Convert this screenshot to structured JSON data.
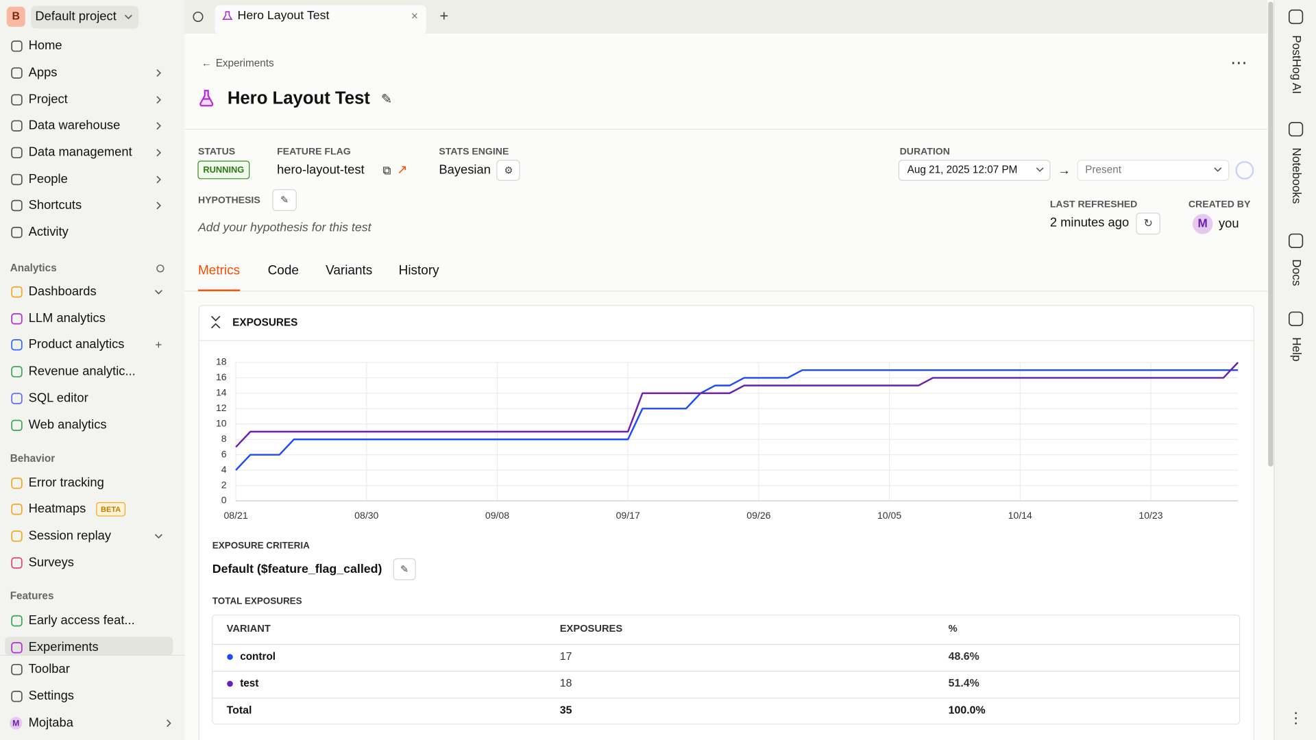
{
  "topbar": {
    "project_initial": "B",
    "project": "Default project",
    "tab": "Hero Layout Test"
  },
  "sidebar": {
    "nav": [
      "Home",
      "Apps",
      "Project",
      "Data warehouse",
      "Data management",
      "People",
      "Shortcuts",
      "Activity"
    ],
    "sections": [
      {
        "title": "Analytics",
        "items": [
          {
            "label": "Dashboards"
          },
          {
            "label": "LLM analytics"
          },
          {
            "label": "Product analytics"
          },
          {
            "label": "Revenue analytic..."
          },
          {
            "label": "SQL editor"
          },
          {
            "label": "Web analytics"
          }
        ]
      },
      {
        "title": "Behavior",
        "items": [
          {
            "label": "Error tracking"
          },
          {
            "label": "Heatmaps",
            "badge": "BETA"
          },
          {
            "label": "Session replay"
          },
          {
            "label": "Surveys"
          }
        ]
      },
      {
        "title": "Features",
        "items": [
          {
            "label": "Early access feat..."
          },
          {
            "label": "Experiments"
          }
        ]
      }
    ],
    "bottom": [
      {
        "label": "Toolbar"
      },
      {
        "label": "Settings"
      },
      {
        "label": "Mojtaba",
        "initial": "M"
      }
    ]
  },
  "right_rail": [
    "PostHog AI",
    "Notebooks",
    "Docs",
    "Help"
  ],
  "experiment": {
    "breadcrumb": "Experiments",
    "title": "Hero Layout Test",
    "status": {
      "label": "STATUS",
      "value": "RUNNING"
    },
    "feature_flag": {
      "label": "FEATURE FLAG",
      "value": "hero-layout-test"
    },
    "stats_engine": {
      "label": "STATS ENGINE",
      "value": "Bayesian"
    },
    "duration": {
      "label": "DURATION",
      "start": "Aug 21, 2025 12:07 PM",
      "end": "Present"
    },
    "hypothesis": {
      "label": "HYPOTHESIS",
      "placeholder": "Add your hypothesis for this test"
    },
    "last_refreshed": {
      "label": "LAST REFRESHED",
      "value": "2 minutes ago"
    },
    "created_by": {
      "label": "CREATED BY",
      "initial": "M",
      "value": "you"
    }
  },
  "tabs": [
    "Metrics",
    "Code",
    "Variants",
    "History"
  ],
  "exposures": {
    "title": "EXPOSURES",
    "criteria_label": "EXPOSURE CRITERIA",
    "criteria": "Default ($feature_flag_called)",
    "total_label": "TOTAL EXPOSURES",
    "table": {
      "header": [
        "VARIANT",
        "EXPOSURES",
        "%"
      ],
      "rows": [
        {
          "exposures": 17,
          "percent": "48.6%"
        },
        {
          "exposures": 18,
          "percent": "51.4%"
        }
      ],
      "total": {
        "label": "Total",
        "exposures": 35,
        "percent": "100.0%"
      }
    }
  },
  "chart_data": {
    "type": "line",
    "categories": [
      "08/21",
      null,
      null,
      null,
      null,
      null,
      null,
      null,
      null,
      "08/30",
      null,
      null,
      null,
      null,
      null,
      null,
      null,
      null,
      "09/08",
      null,
      null,
      null,
      null,
      null,
      null,
      null,
      null,
      "09/17",
      null,
      null,
      null,
      null,
      null,
      null,
      null,
      null,
      "09/26",
      null,
      null,
      null,
      null,
      null,
      null,
      null,
      null,
      "10/05",
      null,
      null,
      null,
      null,
      null,
      null,
      null,
      null,
      "10/14",
      null,
      null,
      null,
      null,
      null,
      null,
      null,
      null,
      "10/23",
      null,
      null,
      null,
      null,
      null,
      null
    ],
    "series": [
      {
        "name": "control",
        "color": "#1d4aff",
        "values": [
          4,
          6,
          6,
          6,
          8,
          8,
          8,
          8,
          8,
          8,
          8,
          8,
          8,
          8,
          8,
          8,
          8,
          8,
          8,
          8,
          8,
          8,
          8,
          8,
          8,
          8,
          8,
          8,
          12,
          12,
          12,
          12,
          14,
          15,
          15,
          16,
          16,
          16,
          16,
          17,
          17,
          17,
          17,
          17,
          17,
          17,
          17,
          17,
          17,
          17,
          17,
          17,
          17,
          17,
          17,
          17,
          17,
          17,
          17,
          17,
          17,
          17,
          17,
          17,
          17,
          17,
          17,
          17,
          17,
          17
        ]
      },
      {
        "name": "test",
        "color": "#6a1eb0",
        "values": [
          7,
          9,
          9,
          9,
          9,
          9,
          9,
          9,
          9,
          9,
          9,
          9,
          9,
          9,
          9,
          9,
          9,
          9,
          9,
          9,
          9,
          9,
          9,
          9,
          9,
          9,
          9,
          9,
          14,
          14,
          14,
          14,
          14,
          14,
          14,
          15,
          15,
          15,
          15,
          15,
          15,
          15,
          15,
          15,
          15,
          15,
          15,
          15,
          16,
          16,
          16,
          16,
          16,
          16,
          16,
          16,
          16,
          16,
          16,
          16,
          16,
          16,
          16,
          16,
          16,
          16,
          16,
          16,
          16,
          18
        ]
      }
    ],
    "ylim": [
      0,
      18
    ],
    "yticks": [
      0,
      2,
      4,
      6,
      8,
      10,
      12,
      14,
      16,
      18
    ],
    "grid": true
  }
}
